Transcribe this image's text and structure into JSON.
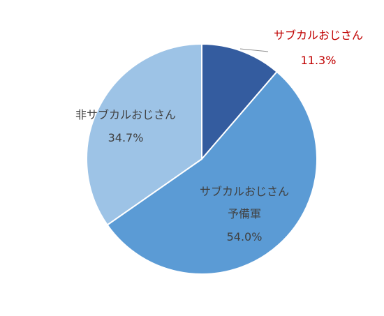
{
  "chart_data": {
    "type": "pie",
    "title": "",
    "slices": [
      {
        "label_lines": [
          "サブカルおじさん"
        ],
        "value": 11.3,
        "value_text": "11.3%",
        "color": "#345c9f",
        "label_color": "#c00000"
      },
      {
        "label_lines": [
          "サブカルおじさん",
          "予備軍"
        ],
        "value": 54.0,
        "value_text": "54.0%",
        "color": "#5b9bd5",
        "label_color": "#404040"
      },
      {
        "label_lines": [
          "非サブカルおじさん"
        ],
        "value": 34.7,
        "value_text": "34.7%",
        "color": "#9dc3e6",
        "label_color": "#404040"
      }
    ],
    "start_angle": "12 o'clock",
    "direction": "clockwise",
    "legend": "none"
  }
}
